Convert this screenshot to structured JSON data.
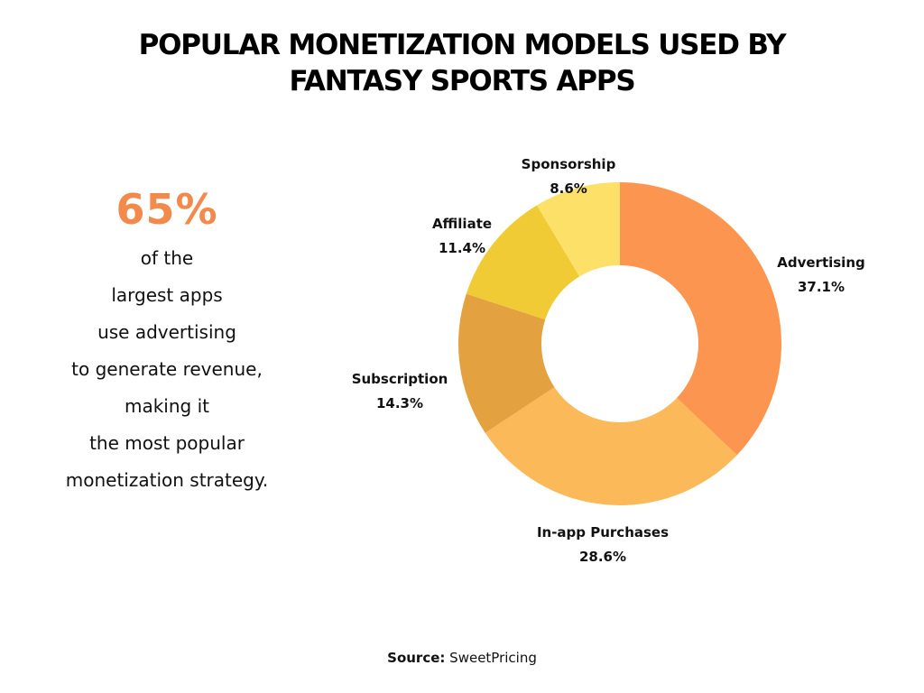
{
  "title_lines": [
    "POPULAR MONETIZATION MODELS USED BY",
    "FANTASY SPORTS APPS"
  ],
  "stat": {
    "value": "65%",
    "lines": [
      "of the",
      "largest apps",
      "use advertising",
      "to generate revenue,",
      "making it",
      "the most popular",
      "monetization strategy."
    ]
  },
  "source": {
    "label": "Source:",
    "value": "SweetPricing"
  },
  "colors": {
    "accent": "#f28a4b"
  },
  "chart_data": {
    "type": "pie",
    "donut": true,
    "title": "POPULAR MONETIZATION MODELS USED BY FANTASY SPORTS APPS",
    "slices": [
      {
        "label": "Advertising",
        "value": 37.1,
        "value_label": "37.1%",
        "color": "#fc9550"
      },
      {
        "label": "In-app Purchases",
        "value": 28.6,
        "value_label": "28.6%",
        "color": "#fbb95a"
      },
      {
        "label": "Subscription",
        "value": 14.3,
        "value_label": "14.3%",
        "color": "#e3a13f"
      },
      {
        "label": "Affiliate",
        "value": 11.4,
        "value_label": "11.4%",
        "color": "#f0cb35"
      },
      {
        "label": "Sponsorship",
        "value": 8.6,
        "value_label": "8.6%",
        "color": "#fde067"
      }
    ],
    "start": "12 o'clock, clockwise",
    "legend": "none"
  }
}
